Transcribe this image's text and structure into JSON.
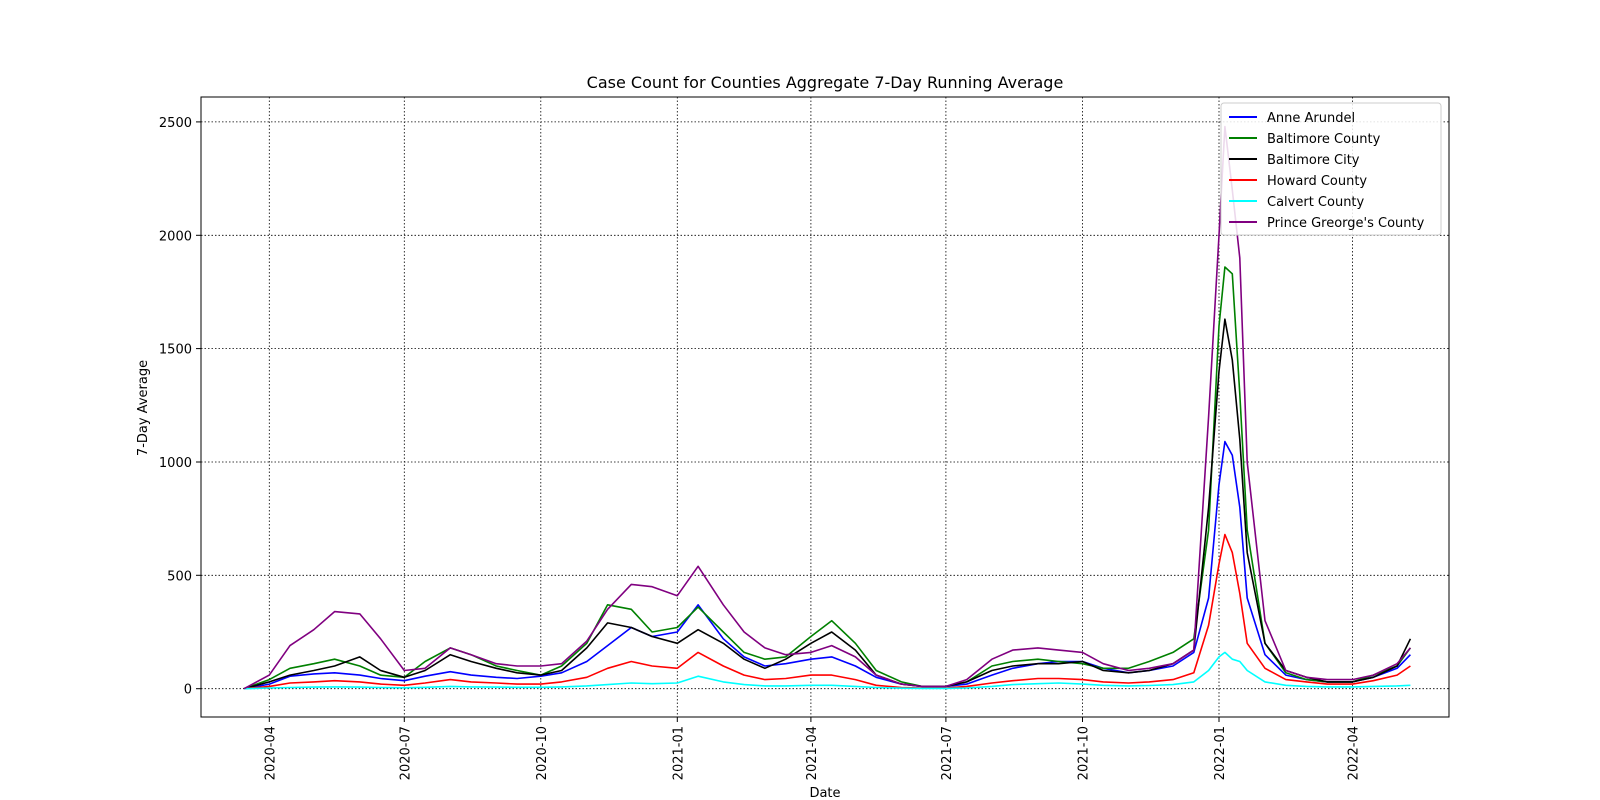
{
  "chart_data": {
    "type": "line",
    "title": "Case Count for Counties Aggregate 7-Day Running Average",
    "xlabel": "Date",
    "ylabel": "7-Day Average",
    "xlim": [
      "2020-02-15",
      "2022-06-05"
    ],
    "ylim": [
      -125,
      2610
    ],
    "x_ticks": [
      "2020-04",
      "2020-07",
      "2020-10",
      "2021-01",
      "2021-04",
      "2021-07",
      "2021-10",
      "2022-01",
      "2022-04"
    ],
    "y_ticks": [
      0,
      500,
      1000,
      1500,
      2000,
      2500
    ],
    "grid": true,
    "grid_style": "dotted",
    "legend_position": "upper right",
    "x": [
      "2020-03-15",
      "2020-04-01",
      "2020-04-15",
      "2020-05-01",
      "2020-05-15",
      "2020-06-01",
      "2020-06-15",
      "2020-07-01",
      "2020-07-15",
      "2020-08-01",
      "2020-08-15",
      "2020-09-01",
      "2020-09-15",
      "2020-10-01",
      "2020-10-15",
      "2020-11-01",
      "2020-11-15",
      "2020-12-01",
      "2020-12-15",
      "2021-01-01",
      "2021-01-15",
      "2021-02-01",
      "2021-02-15",
      "2021-03-01",
      "2021-03-15",
      "2021-04-01",
      "2021-04-15",
      "2021-05-01",
      "2021-05-15",
      "2021-06-01",
      "2021-06-15",
      "2021-07-01",
      "2021-07-15",
      "2021-08-01",
      "2021-08-15",
      "2021-09-01",
      "2021-09-15",
      "2021-10-01",
      "2021-10-15",
      "2021-11-01",
      "2021-11-15",
      "2021-12-01",
      "2021-12-15",
      "2021-12-25",
      "2022-01-01",
      "2022-01-05",
      "2022-01-10",
      "2022-01-15",
      "2022-01-20",
      "2022-02-01",
      "2022-02-15",
      "2022-03-01",
      "2022-03-15",
      "2022-04-01",
      "2022-04-15",
      "2022-05-01",
      "2022-05-10"
    ],
    "series": [
      {
        "name": "Anne Arundel",
        "color": "#0000ff",
        "values": [
          0,
          20,
          55,
          65,
          70,
          60,
          45,
          35,
          55,
          75,
          60,
          50,
          45,
          55,
          70,
          120,
          190,
          270,
          230,
          250,
          370,
          220,
          140,
          100,
          110,
          130,
          140,
          100,
          50,
          20,
          10,
          10,
          20,
          60,
          90,
          110,
          120,
          120,
          90,
          70,
          80,
          100,
          160,
          400,
          900,
          1090,
          1030,
          800,
          400,
          150,
          60,
          40,
          30,
          30,
          50,
          90,
          150
        ]
      },
      {
        "name": "Baltimore County",
        "color": "#008000",
        "values": [
          0,
          40,
          90,
          110,
          130,
          100,
          60,
          50,
          120,
          180,
          150,
          100,
          80,
          60,
          100,
          200,
          370,
          350,
          250,
          270,
          360,
          250,
          160,
          130,
          140,
          230,
          300,
          200,
          80,
          30,
          10,
          10,
          30,
          100,
          120,
          130,
          120,
          110,
          90,
          90,
          120,
          160,
          220,
          700,
          1600,
          1860,
          1830,
          1300,
          700,
          200,
          70,
          40,
          30,
          30,
          60,
          100,
          180
        ]
      },
      {
        "name": "Baltimore City",
        "color": "#000000",
        "values": [
          0,
          30,
          60,
          80,
          100,
          140,
          80,
          50,
          80,
          150,
          120,
          90,
          70,
          60,
          80,
          180,
          290,
          270,
          230,
          200,
          260,
          200,
          130,
          90,
          130,
          200,
          250,
          170,
          60,
          20,
          10,
          10,
          30,
          80,
          100,
          110,
          110,
          120,
          80,
          70,
          80,
          110,
          170,
          800,
          1400,
          1630,
          1450,
          1100,
          600,
          200,
          80,
          50,
          30,
          30,
          50,
          100,
          220
        ]
      },
      {
        "name": "Howard County",
        "color": "#ff0000",
        "values": [
          0,
          10,
          25,
          30,
          35,
          30,
          20,
          15,
          25,
          40,
          30,
          25,
          20,
          20,
          30,
          50,
          90,
          120,
          100,
          90,
          160,
          100,
          60,
          40,
          45,
          60,
          60,
          40,
          15,
          5,
          3,
          3,
          10,
          25,
          35,
          45,
          45,
          40,
          30,
          25,
          30,
          40,
          70,
          280,
          550,
          680,
          600,
          420,
          200,
          90,
          40,
          30,
          20,
          20,
          35,
          60,
          100
        ]
      },
      {
        "name": "Calvert County",
        "color": "#00ffff",
        "values": [
          0,
          3,
          5,
          7,
          8,
          7,
          5,
          4,
          6,
          10,
          8,
          7,
          6,
          6,
          8,
          12,
          18,
          25,
          22,
          25,
          55,
          30,
          18,
          12,
          12,
          15,
          15,
          10,
          5,
          2,
          1,
          1,
          3,
          10,
          18,
          22,
          25,
          20,
          15,
          12,
          14,
          18,
          30,
          80,
          140,
          160,
          130,
          120,
          80,
          30,
          15,
          10,
          8,
          8,
          10,
          12,
          15
        ]
      },
      {
        "name": "Prince Greorge's County",
        "color": "#800080",
        "values": [
          0,
          60,
          190,
          260,
          340,
          330,
          220,
          80,
          90,
          180,
          150,
          110,
          100,
          100,
          110,
          210,
          350,
          460,
          450,
          410,
          540,
          370,
          250,
          180,
          150,
          160,
          190,
          140,
          60,
          20,
          10,
          10,
          40,
          130,
          170,
          180,
          170,
          160,
          110,
          80,
          90,
          110,
          170,
          1200,
          2000,
          2480,
          2200,
          1900,
          1000,
          300,
          80,
          50,
          40,
          40,
          60,
          110,
          180
        ]
      }
    ]
  }
}
